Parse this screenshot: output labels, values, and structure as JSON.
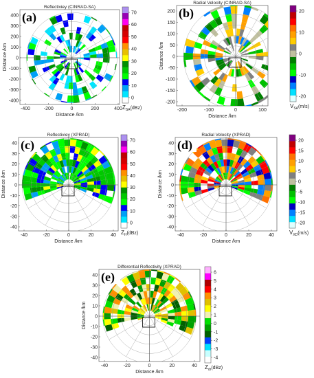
{
  "panels": [
    {
      "label": "(a)",
      "title": "Reflectiviey (CINRAD-SA)",
      "xlabel": "Distance /km",
      "ylabel": "Distance /km",
      "xticks": [
        -400,
        -200,
        0,
        200,
        400
      ],
      "yticks": [
        400,
        300,
        200,
        100,
        0,
        -100,
        -200,
        -300,
        -400
      ],
      "colorbar": {
        "ticks": [
          70,
          60,
          50,
          40,
          30,
          20,
          10,
          0
        ],
        "symbol": "Z",
        "sub": "SA",
        "unit": "(dBz)"
      }
    },
    {
      "label": "(b)",
      "title": "Radial Velocity (CINRAD-SA)",
      "xlabel": "Distance /km",
      "ylabel": "Distance /km",
      "xticks": [
        -200,
        -100,
        0,
        100
      ],
      "yticks": [
        200,
        150,
        100,
        50,
        0,
        -50,
        -100,
        -150,
        -200
      ],
      "colorbar": {
        "ticks": [
          20,
          10,
          0,
          -10,
          -20
        ],
        "symbol": "V",
        "sub": "SA",
        "unit": "(m/s)"
      }
    },
    {
      "label": "(c)",
      "title": "Reflectiviey (XPRAD)",
      "xlabel": "Distance /km",
      "ylabel": "Distance /km",
      "xticks": [
        -40,
        -20,
        0,
        20,
        40
      ],
      "yticks": [
        40,
        30,
        20,
        10,
        0,
        -10,
        -20,
        -30,
        -40
      ],
      "colorbar": {
        "ticks": [
          70,
          60,
          50,
          40,
          30,
          20,
          10,
          0
        ],
        "symbol": "Z",
        "sub": "H",
        "unit": "(dBz)"
      }
    },
    {
      "label": "(d)",
      "title": "Radial Velocity (XPRAD)",
      "xlabel": "Distance /km",
      "ylabel": "Distance /km",
      "xticks": [
        -40,
        -20,
        0,
        20,
        40
      ],
      "yticks": [
        40,
        30,
        20,
        10,
        0,
        -10,
        -20,
        -30,
        -40
      ],
      "colorbar": {
        "ticks": [
          20,
          15,
          10,
          5,
          0,
          -5,
          -10,
          -15,
          -20
        ],
        "symbol": "V",
        "sub": "XD",
        "unit": "(m/s)"
      }
    },
    {
      "label": "(e)",
      "title": "Differential Reflectivity (XPRAD)",
      "xlabel": "Distance /km",
      "ylabel": "Distance /km",
      "xticks": [
        -40,
        -20,
        0,
        20,
        40
      ],
      "yticks": [
        40,
        30,
        20,
        10,
        0,
        -10,
        -20,
        -30,
        -40
      ],
      "colorbar": {
        "ticks": [
          6,
          5,
          4,
          3,
          2,
          1,
          0,
          -1,
          -2,
          -3,
          -4
        ],
        "symbol": "Z",
        "sub": "dr",
        "unit": "(dBz)"
      }
    }
  ]
}
